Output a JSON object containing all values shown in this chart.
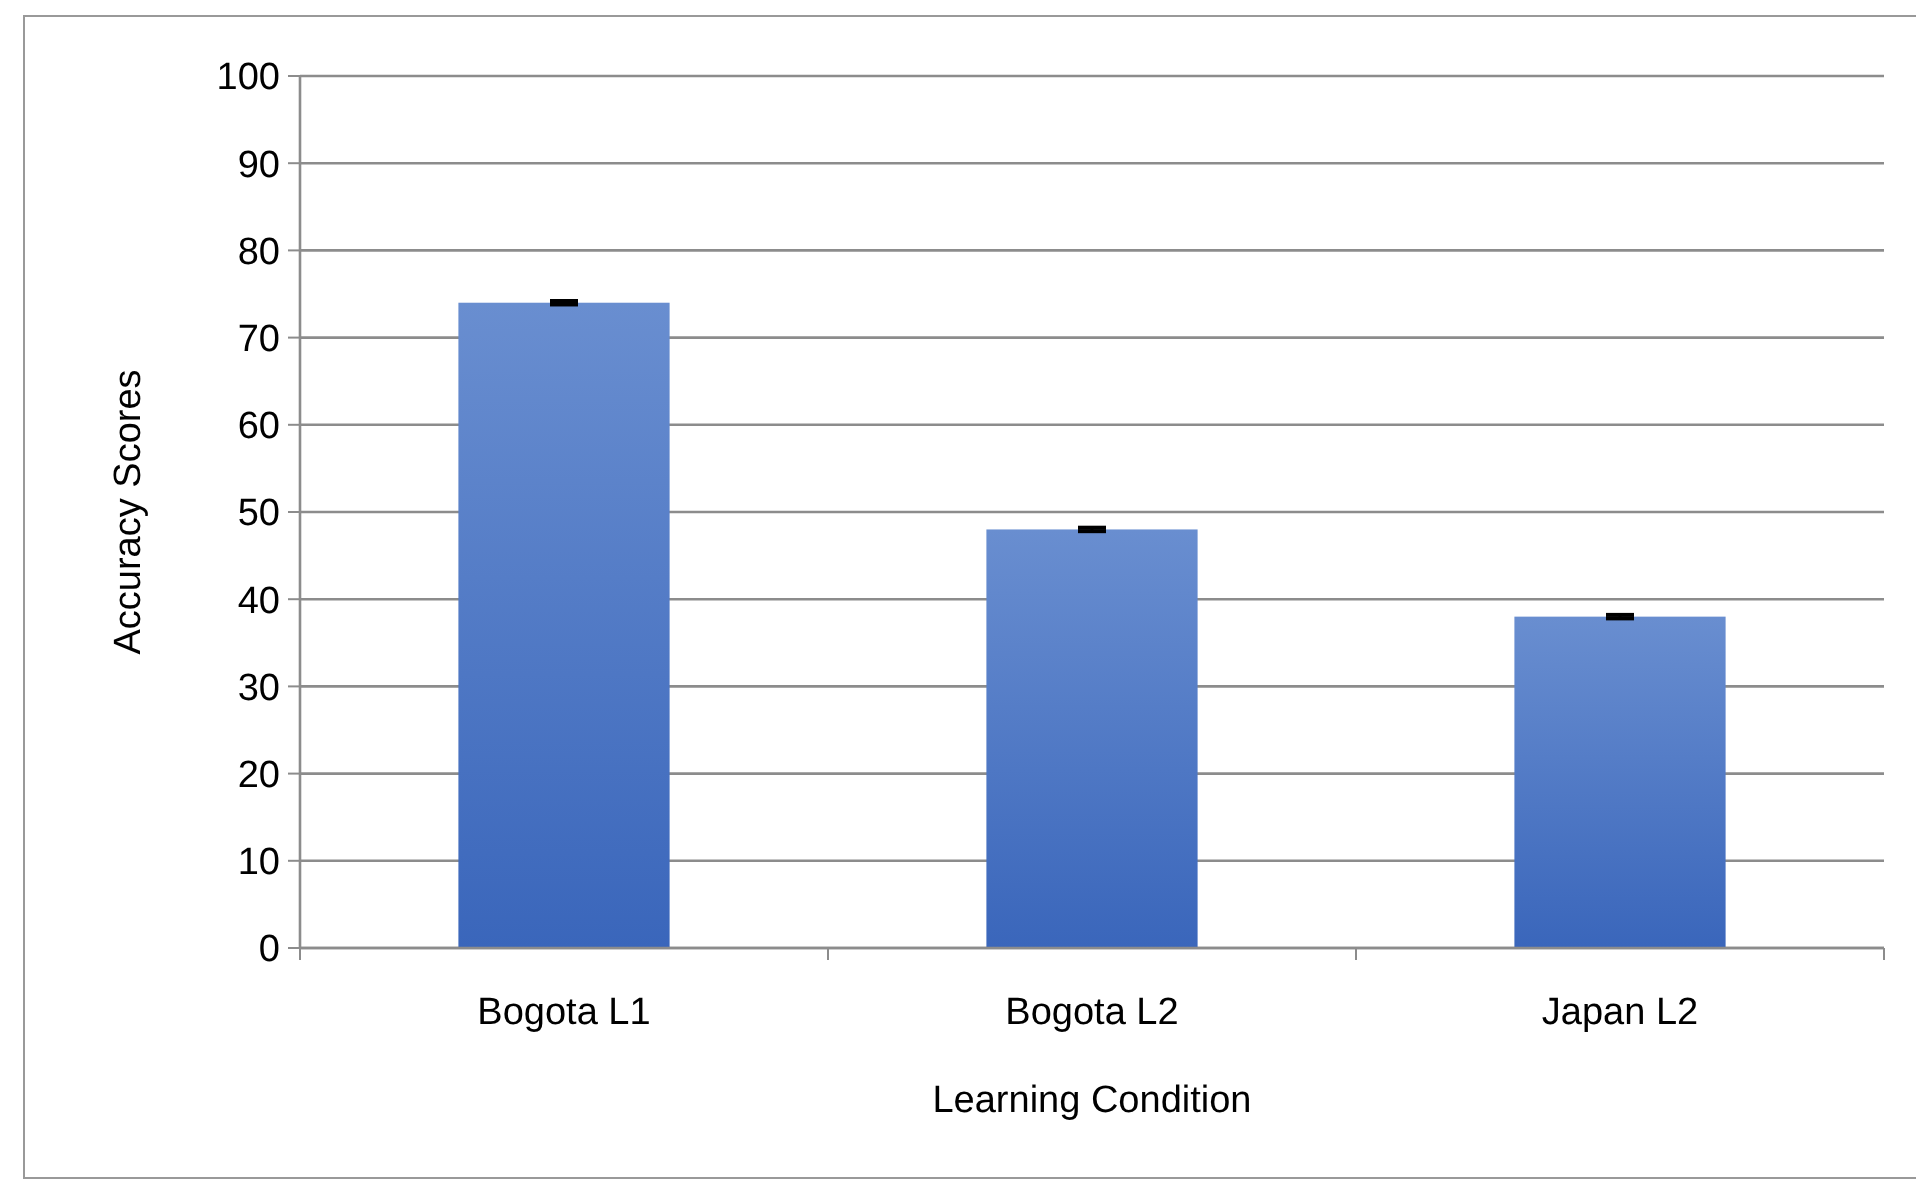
{
  "chart_data": {
    "type": "bar",
    "xlabel": "Learning Condition",
    "ylabel": "Accuracy Scores",
    "categories": [
      "Bogota L1",
      "Bogota L2",
      "Japan L2"
    ],
    "values": [
      74,
      48,
      38
    ],
    "errors": [
      0.2,
      0.2,
      0.2
    ],
    "color": "#4472c4",
    "ylim": [
      0,
      100
    ],
    "yticks": [
      0,
      10,
      20,
      30,
      40,
      50,
      60,
      70,
      80,
      90,
      100
    ],
    "grid": "y"
  }
}
